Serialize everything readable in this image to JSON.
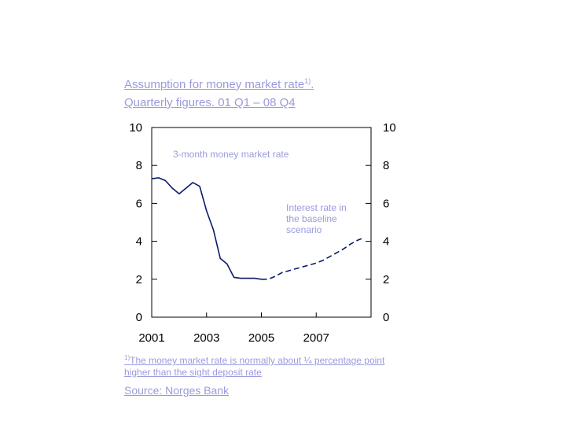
{
  "title_line1": "Assumption for money market rate",
  "title_line1_sup": "1)",
  "title_line1_end": ".",
  "title_line2": "Quarterly figures.  01 Q1 – 08 Q4",
  "annotations": {
    "historical": "3-month money market rate",
    "baseline": "Interest rate in the baseline scenario"
  },
  "footnote_marker": "1)",
  "footnote_text": "The money market rate is normally about ¼ percentage point higher than the sight deposit rate",
  "source": "Source: Norges Bank",
  "colors": {
    "text_accent": "#9a9ade",
    "line": "#0b1a6b",
    "axis": "#000000"
  },
  "chart_data": {
    "type": "line",
    "ylim": [
      0,
      10
    ],
    "yticks": [
      0,
      2,
      4,
      6,
      8,
      10
    ],
    "xlim": [
      2001.0,
      2009.0
    ],
    "xticks": [
      2001,
      2003,
      2005,
      2007
    ],
    "grid": false,
    "dual_y_axis": true,
    "series": [
      {
        "style": "solid",
        "x": [
          2001.0,
          2001.25,
          2001.5,
          2001.75,
          2002.0,
          2002.25,
          2002.5,
          2002.75,
          2003.0,
          2003.25,
          2003.5,
          2003.75,
          2004.0,
          2004.25,
          2004.5,
          2004.75,
          2005.0
        ],
        "y": [
          7.3,
          7.35,
          7.2,
          6.8,
          6.5,
          6.8,
          7.1,
          6.9,
          5.6,
          4.6,
          3.1,
          2.8,
          2.1,
          2.05,
          2.05,
          2.05,
          2.0
        ]
      },
      {
        "style": "dashed",
        "x": [
          2005.0,
          2005.25,
          2005.5,
          2005.75,
          2006.0,
          2006.25,
          2006.5,
          2006.75,
          2007.0,
          2007.25,
          2007.5,
          2007.75,
          2008.0,
          2008.25,
          2008.5,
          2008.75
        ],
        "y": [
          2.0,
          2.0,
          2.15,
          2.35,
          2.45,
          2.55,
          2.65,
          2.75,
          2.85,
          3.0,
          3.2,
          3.4,
          3.6,
          3.85,
          4.05,
          4.2
        ]
      }
    ]
  }
}
